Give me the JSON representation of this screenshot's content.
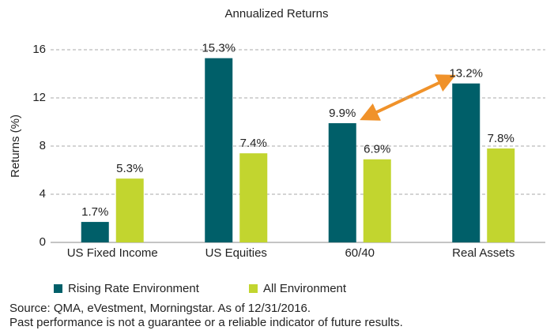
{
  "chart_data": {
    "type": "bar",
    "title": "Annualized Returns",
    "y_label": "Returns (%)",
    "categories": [
      "US Fixed Income",
      "US Equities",
      "60/40",
      "Real Assets"
    ],
    "series": [
      {
        "name": "Rising Rate Environment",
        "color": "#005f69",
        "values": [
          1.7,
          15.3,
          9.9,
          13.2
        ],
        "value_labels": [
          "1.7%",
          "15.3%",
          "9.9%",
          "13.2%"
        ]
      },
      {
        "name": "All Environment",
        "color": "#c2d52f",
        "values": [
          5.3,
          7.4,
          6.9,
          7.8
        ],
        "value_labels": [
          "5.3%",
          "7.4%",
          "6.9%",
          "7.8%"
        ]
      }
    ],
    "ylim": [
      0,
      16
    ],
    "yticks": [
      0,
      4,
      8,
      12,
      16
    ],
    "grid": true,
    "legend": "bottom",
    "notes": [
      "Source: QMA, eVestment, Morningstar. As of 12/31/2016.",
      "Past performance is not a guarantee or a reliable indicator of future results."
    ]
  }
}
